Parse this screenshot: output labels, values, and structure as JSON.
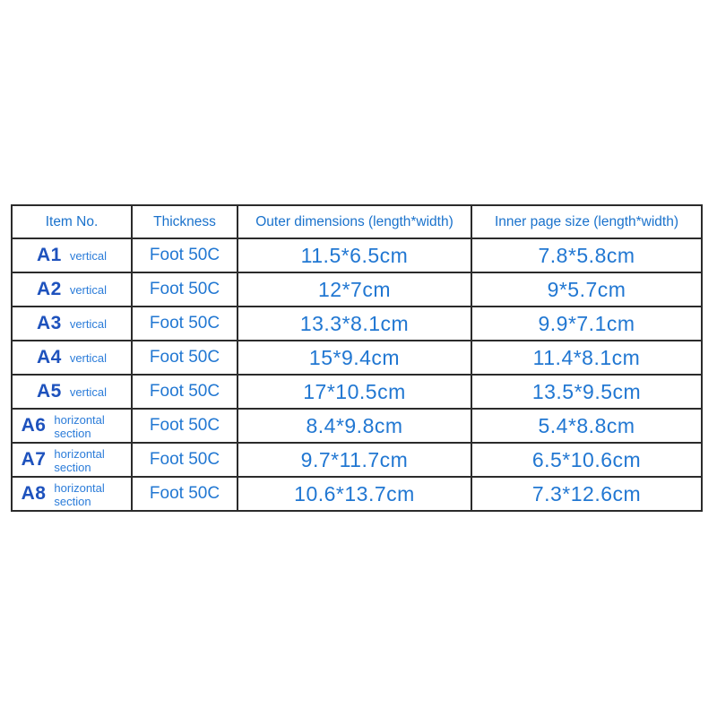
{
  "table": {
    "headers": {
      "item_no": "Item No.",
      "thickness": "Thickness",
      "outer": "Outer dimensions (length*width)",
      "inner": "Inner page size (length*width)"
    },
    "rows": [
      {
        "item_no": "A1",
        "orientation": "vertical",
        "thickness": "Foot 50C",
        "outer": "11.5*6.5cm",
        "inner": "7.8*5.8cm"
      },
      {
        "item_no": "A2",
        "orientation": "vertical",
        "thickness": "Foot 50C",
        "outer": "12*7cm",
        "inner": "9*5.7cm"
      },
      {
        "item_no": "A3",
        "orientation": "vertical",
        "thickness": "Foot 50C",
        "outer": "13.3*8.1cm",
        "inner": "9.9*7.1cm"
      },
      {
        "item_no": "A4",
        "orientation": "vertical",
        "thickness": "Foot 50C",
        "outer": "15*9.4cm",
        "inner": "11.4*8.1cm"
      },
      {
        "item_no": "A5",
        "orientation": "vertical",
        "thickness": "Foot 50C",
        "outer": "17*10.5cm",
        "inner": "13.5*9.5cm"
      },
      {
        "item_no": "A6",
        "orientation": "horizontal section",
        "thickness": "Foot 50C",
        "outer": "8.4*9.8cm",
        "inner": "5.4*8.8cm"
      },
      {
        "item_no": "A7",
        "orientation": "horizontal section",
        "thickness": "Foot 50C",
        "outer": "9.7*11.7cm",
        "inner": "6.5*10.6cm"
      },
      {
        "item_no": "A8",
        "orientation": "horizontal section",
        "thickness": "Foot 50C",
        "outer": "10.6*13.7cm",
        "inner": "7.3*12.6cm"
      }
    ],
    "colors": {
      "header_text": "#1a72cc",
      "item_no_text": "#1e52bd",
      "orientation_text": "#2b7cd9",
      "value_text": "#2177d2",
      "border": "#2b2b2b",
      "background": "#ffffff"
    }
  }
}
